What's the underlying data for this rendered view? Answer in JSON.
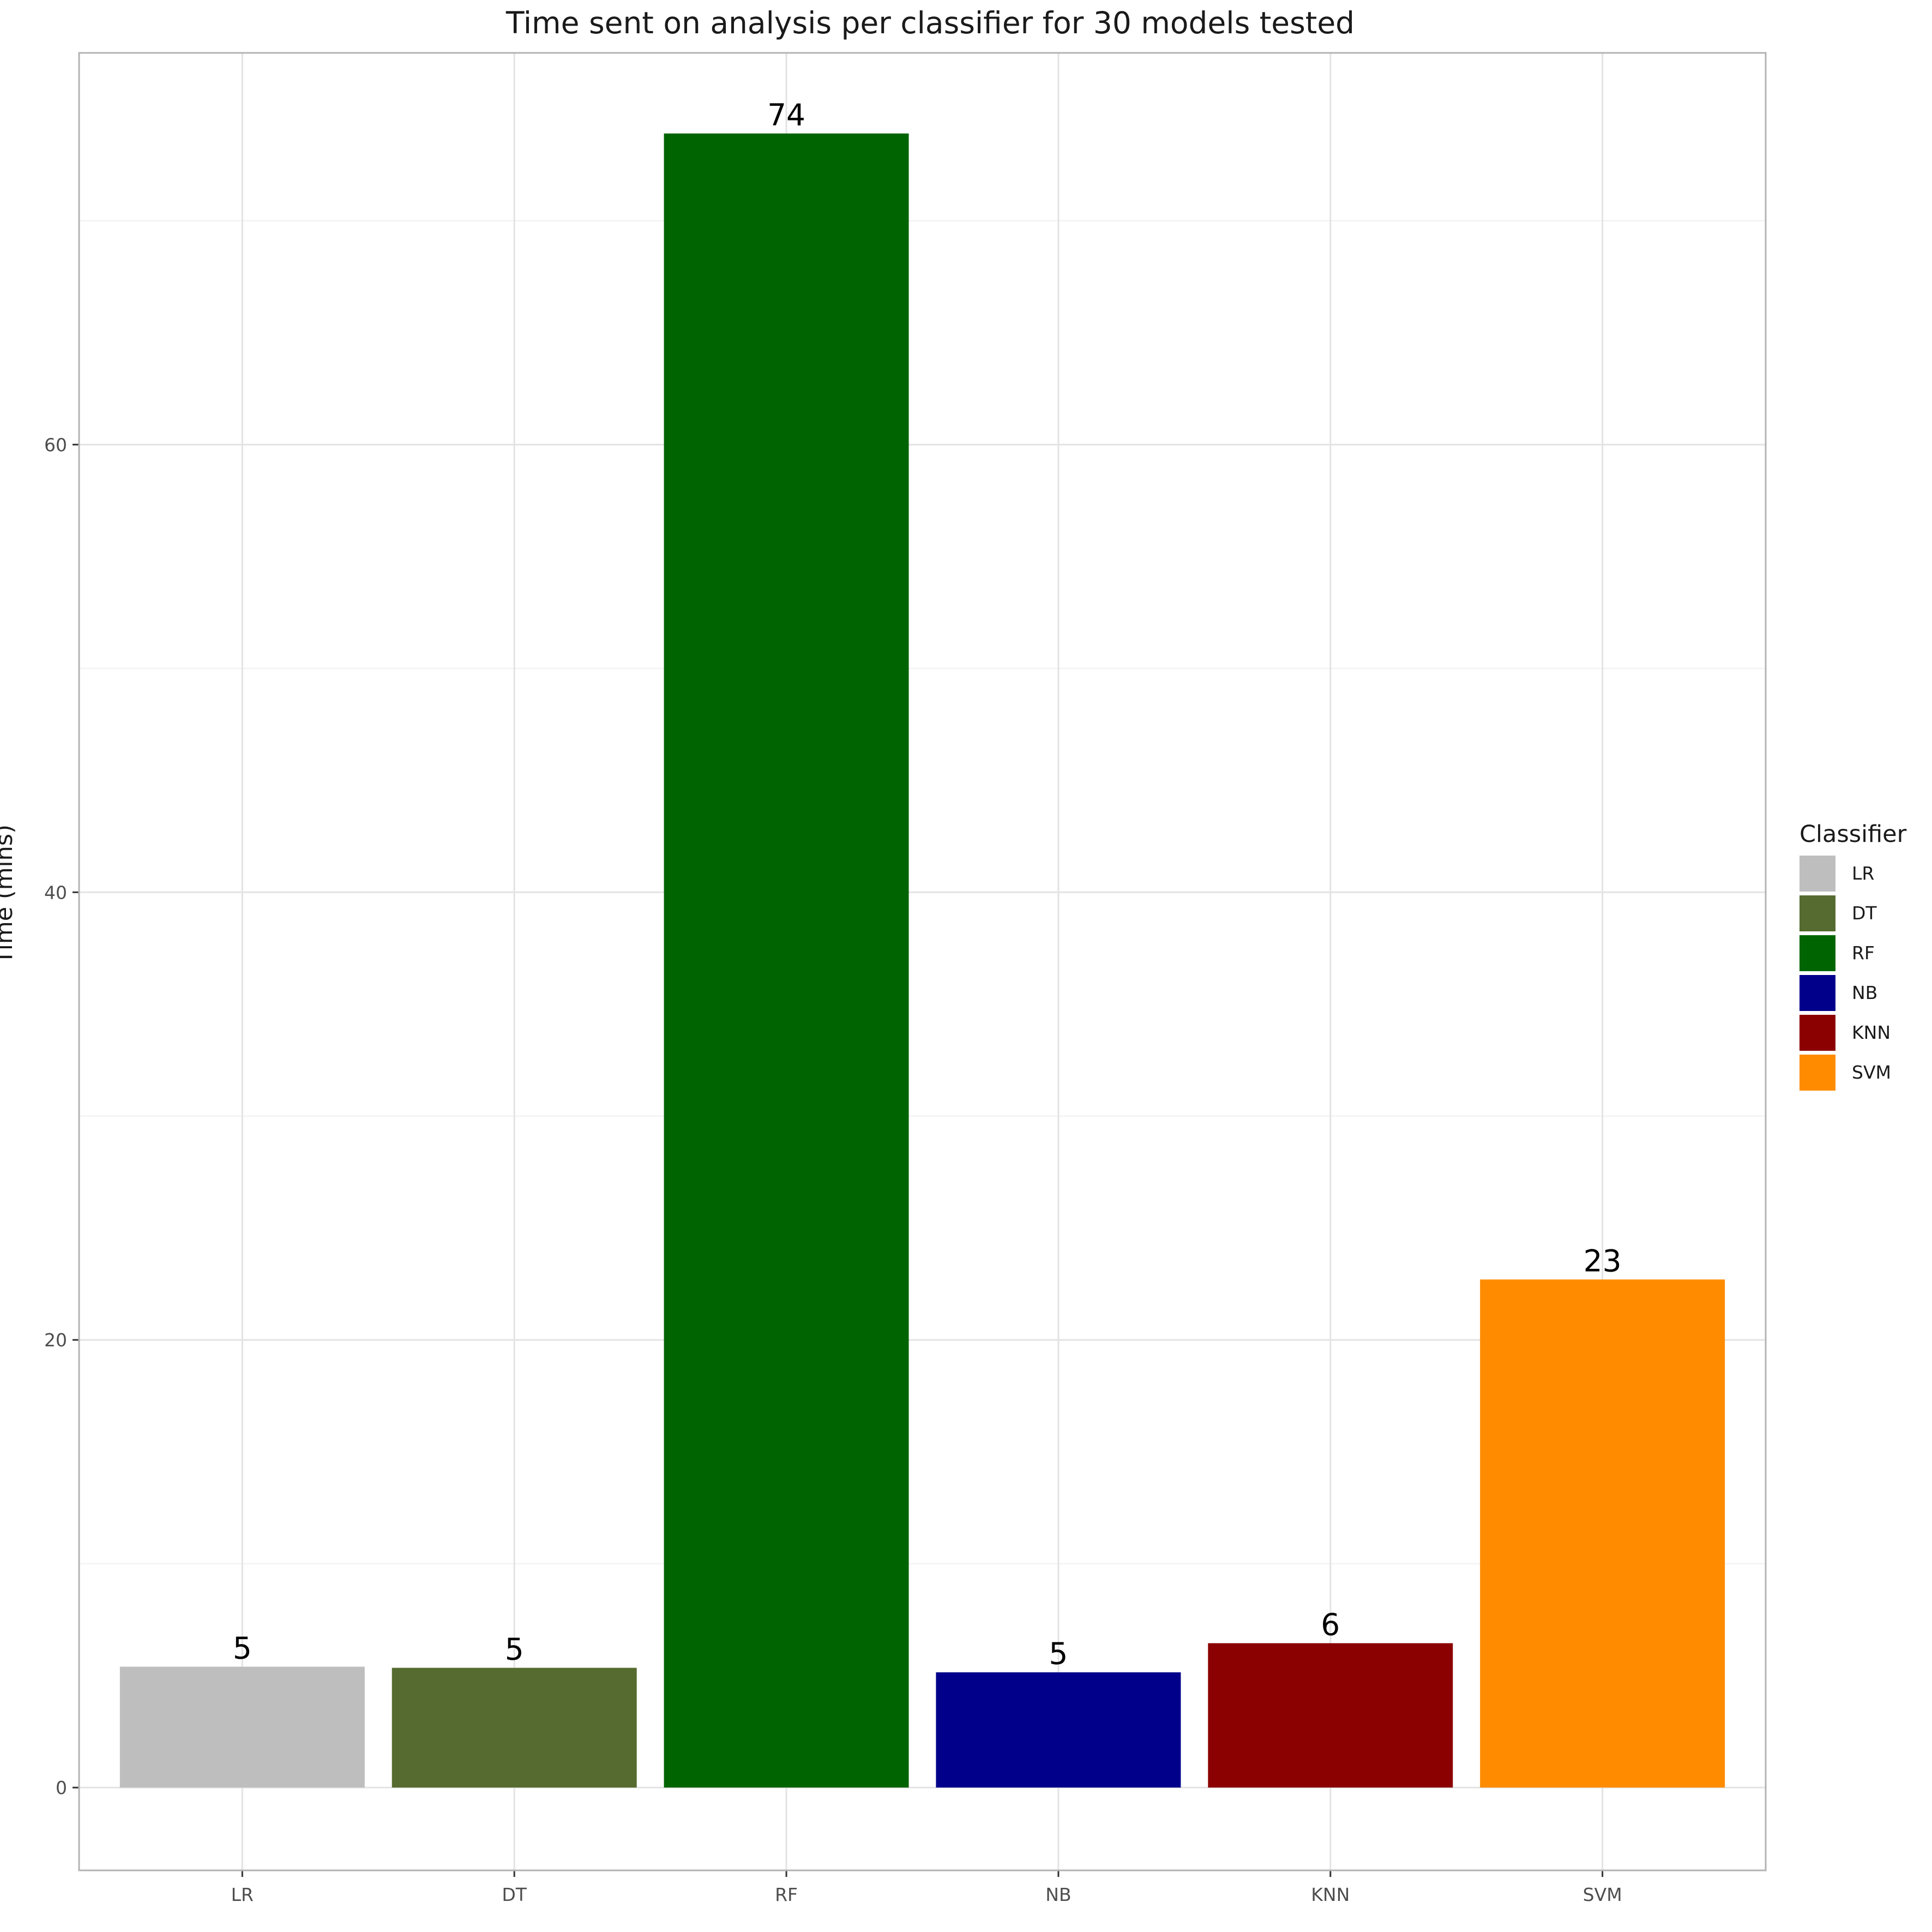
{
  "chart_data": {
    "type": "bar",
    "title": "Time sent on analysis per classifier for 30 models tested",
    "xlabel": "",
    "ylabel": "Time (mins)",
    "categories": [
      "LR",
      "DT",
      "RF",
      "NB",
      "KNN",
      "SVM"
    ],
    "values": [
      5.4,
      5.35,
      73.9,
      5.15,
      6.45,
      22.7
    ],
    "data_labels": [
      "5",
      "5",
      "74",
      "5",
      "6",
      "23"
    ],
    "colors": [
      "#bebebe",
      "#556b2f",
      "#006400",
      "#00008b",
      "#8b0000",
      "#ff8c00"
    ],
    "ylim": [
      -3.7,
      77.5
    ],
    "y_ticks": [
      0,
      20,
      40,
      60
    ],
    "grid": true,
    "legend": {
      "title": "Classifier",
      "position": "right",
      "entries": [
        "LR",
        "DT",
        "RF",
        "NB",
        "KNN",
        "SVM"
      ]
    }
  }
}
